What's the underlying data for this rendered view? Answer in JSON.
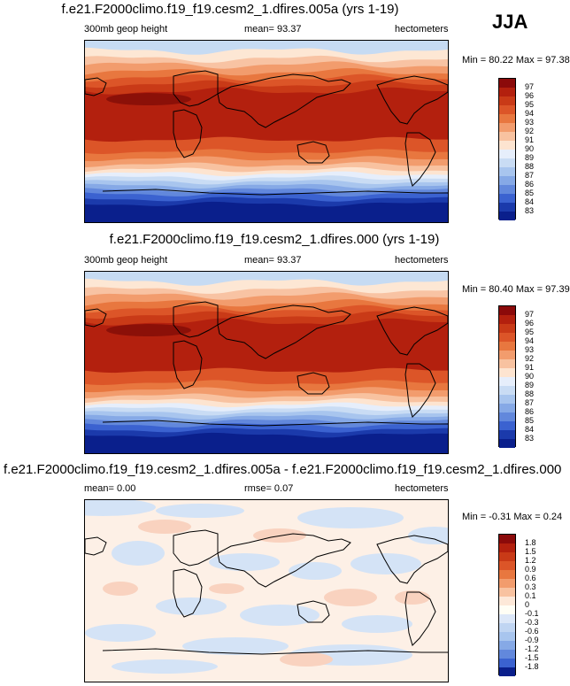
{
  "season": "JJA",
  "panels": [
    {
      "title": "f.e21.F2000climo.f19_f19.cesm2_1.dfires.005a (yrs 1-19)",
      "left_label": "300mb geop height",
      "center_label": "mean=  93.37",
      "right_label": "hectometers",
      "minmax": "Min =  80.22 Max =  97.38",
      "legend_labels": [
        "97",
        "96",
        "95",
        "94",
        "93",
        "92",
        "91",
        "90",
        "89",
        "88",
        "87",
        "86",
        "85",
        "84",
        "83"
      ],
      "legend_colors": [
        "#8b0a0a",
        "#b3200e",
        "#c93a17",
        "#dc5528",
        "#e8773f",
        "#f29c6d",
        "#f8c2a0",
        "#fde4d0",
        "#e6eefb",
        "#c9dcf4",
        "#a8c5ee",
        "#86a9e6",
        "#6288dc",
        "#3b62d0",
        "#1b3aab",
        "#0a1f8c"
      ],
      "contours": [
        {
          "lat": 80,
          "color": "#c6dbf3"
        },
        {
          "lat": 72,
          "color": "#fde7d4"
        },
        {
          "lat": 66,
          "color": "#f8c3a3"
        },
        {
          "lat": 59,
          "color": "#f29c6d"
        },
        {
          "lat": 53,
          "color": "#e8773f"
        },
        {
          "lat": 47,
          "color": "#dc5528"
        },
        {
          "lat": 40,
          "color": "#c93a17"
        },
        {
          "lat": -8,
          "color": "#dc5528"
        },
        {
          "lat": -20,
          "color": "#e8773f"
        },
        {
          "lat": -27,
          "color": "#f29c6d"
        },
        {
          "lat": -33,
          "color": "#f8c2a0"
        },
        {
          "lat": -38,
          "color": "#fde4d0"
        },
        {
          "lat": -42,
          "color": "#e6eefb"
        },
        {
          "lat": -46,
          "color": "#c9dcf4"
        },
        {
          "lat": -50,
          "color": "#a8c5ee"
        },
        {
          "lat": -54,
          "color": "#86a9e6"
        },
        {
          "lat": -58,
          "color": "#6288dc"
        },
        {
          "lat": -62,
          "color": "#3b62d0"
        },
        {
          "lat": -67,
          "color": "#1b3aab"
        },
        {
          "lat": -72,
          "color": "#0a1f8c"
        }
      ],
      "tibet_max": true
    },
    {
      "title": "f.e21.F2000climo.f19_f19.cesm2_1.dfires.000 (yrs 1-19)",
      "left_label": "300mb geop height",
      "center_label": "mean=  93.37",
      "right_label": "hectometers",
      "minmax": "Min =  80.40 Max =  97.39",
      "legend_labels": [
        "97",
        "96",
        "95",
        "94",
        "93",
        "92",
        "91",
        "90",
        "89",
        "88",
        "87",
        "86",
        "85",
        "84",
        "83"
      ],
      "legend_colors": [
        "#8b0a0a",
        "#b3200e",
        "#c93a17",
        "#dc5528",
        "#e8773f",
        "#f29c6d",
        "#f8c2a0",
        "#fde4d0",
        "#e6eefb",
        "#c9dcf4",
        "#a8c5ee",
        "#86a9e6",
        "#6288dc",
        "#3b62d0",
        "#1b3aab",
        "#0a1f8c"
      ],
      "contours": [
        {
          "lat": 80,
          "color": "#c6dbf3"
        },
        {
          "lat": 72,
          "color": "#fde7d4"
        },
        {
          "lat": 66,
          "color": "#f8c3a3"
        },
        {
          "lat": 59,
          "color": "#f29c6d"
        },
        {
          "lat": 53,
          "color": "#e8773f"
        },
        {
          "lat": 47,
          "color": "#dc5528"
        },
        {
          "lat": 40,
          "color": "#c93a17"
        },
        {
          "lat": -8,
          "color": "#dc5528"
        },
        {
          "lat": -20,
          "color": "#e8773f"
        },
        {
          "lat": -27,
          "color": "#f29c6d"
        },
        {
          "lat": -33,
          "color": "#f8c2a0"
        },
        {
          "lat": -38,
          "color": "#fde4d0"
        },
        {
          "lat": -42,
          "color": "#e6eefb"
        },
        {
          "lat": -46,
          "color": "#c9dcf4"
        },
        {
          "lat": -50,
          "color": "#a8c5ee"
        },
        {
          "lat": -54,
          "color": "#86a9e6"
        },
        {
          "lat": -58,
          "color": "#6288dc"
        },
        {
          "lat": -62,
          "color": "#3b62d0"
        },
        {
          "lat": -67,
          "color": "#1b3aab"
        },
        {
          "lat": -72,
          "color": "#0a1f8c"
        }
      ],
      "tibet_max": true
    },
    {
      "title": "f.e21.F2000climo.f19_f19.cesm2_1.dfires.005a - f.e21.F2000climo.f19_f19.cesm2_1.dfires.000",
      "left_label": "mean=   0.00",
      "center_label": "rmse=  0.07",
      "right_label": "hectometers",
      "minmax": "Min = -0.31 Max =   0.24",
      "legend_labels": [
        "1.8",
        "1.5",
        "1.2",
        "0.9",
        "0.6",
        "0.3",
        "0.1",
        "0",
        "-0.1",
        "-0.3",
        "-0.6",
        "-0.9",
        "-1.2",
        "-1.5",
        "-1.8"
      ],
      "legend_colors": [
        "#8b0a0a",
        "#b3200e",
        "#c93a17",
        "#dc5528",
        "#e8773f",
        "#f29c6d",
        "#f8c2a0",
        "#fde8d8",
        "#fffef5",
        "#dce7f8",
        "#c0d5f2",
        "#a8c5ee",
        "#86a9e6",
        "#6288dc",
        "#3b62d0",
        "#0a1f8c"
      ]
    }
  ],
  "colors": {
    "diff_background": "#fdf0e6",
    "diff_blue": "#d4e3f6",
    "diff_red": "#f9d2bf",
    "tibet": "#8b1008"
  },
  "chart_data": [
    {
      "type": "heatmap",
      "title": "f.e21.F2000climo.f19_f19.cesm2_1.dfires.005a (yrs 1-19)",
      "variable": "300mb geop height",
      "units": "hectometers",
      "season": "JJA",
      "mean": 93.37,
      "min": 80.22,
      "max": 97.38,
      "contour_levels": [
        83,
        84,
        85,
        86,
        87,
        88,
        89,
        90,
        91,
        92,
        93,
        94,
        95,
        96,
        97
      ]
    },
    {
      "type": "heatmap",
      "title": "f.e21.F2000climo.f19_f19.cesm2_1.dfires.000 (yrs 1-19)",
      "variable": "300mb geop height",
      "units": "hectometers",
      "season": "JJA",
      "mean": 93.37,
      "min": 80.4,
      "max": 97.39,
      "contour_levels": [
        83,
        84,
        85,
        86,
        87,
        88,
        89,
        90,
        91,
        92,
        93,
        94,
        95,
        96,
        97
      ]
    },
    {
      "type": "heatmap",
      "title": "f.e21.F2000climo.f19_f19.cesm2_1.dfires.005a - f.e21.F2000climo.f19_f19.cesm2_1.dfires.000",
      "units": "hectometers",
      "season": "JJA",
      "mean": 0.0,
      "rmse": 0.07,
      "min": -0.31,
      "max": 0.24,
      "contour_levels": [
        -1.8,
        -1.5,
        -1.2,
        -0.9,
        -0.6,
        -0.3,
        -0.1,
        0,
        0.1,
        0.3,
        0.6,
        0.9,
        1.2,
        1.5,
        1.8
      ]
    }
  ]
}
